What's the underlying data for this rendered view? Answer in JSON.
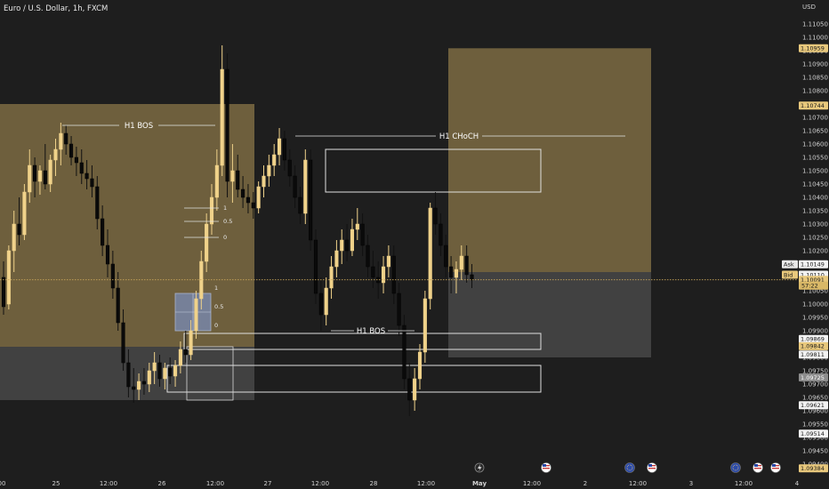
{
  "header": {
    "title": "Euro / U.S. Dollar, 1h, FXCM",
    "currency": "USD"
  },
  "chart_data": {
    "type": "candlestick",
    "symbol": "Euro / U.S. Dollar",
    "interval": "1h",
    "source": "FXCM",
    "ylim": [
      1.0937,
      1.1114
    ],
    "y_ticks": [
      "1.11100",
      "1.11050",
      "1.11000",
      "1.10950",
      "1.10900",
      "1.10850",
      "1.10800",
      "1.10750",
      "1.10700",
      "1.10650",
      "1.10600",
      "1.10550",
      "1.10500",
      "1.10450",
      "1.10400",
      "1.10350",
      "1.10300",
      "1.10250",
      "1.10200",
      "1.10150",
      "1.10100",
      "1.10050",
      "1.10000",
      "1.09950",
      "1.09900",
      "1.09850",
      "1.09800",
      "1.09750",
      "1.09700",
      "1.09650",
      "1.09600",
      "1.09550",
      "1.09500",
      "1.09450",
      "1.09400"
    ],
    "x_ticks": [
      {
        "label": "00",
        "x": 2
      },
      {
        "label": "25",
        "x": 63
      },
      {
        "label": "12:00",
        "x": 122
      },
      {
        "label": "26",
        "x": 182
      },
      {
        "label": "12:00",
        "x": 242
      },
      {
        "label": "27",
        "x": 301
      },
      {
        "label": "12:00",
        "x": 360
      },
      {
        "label": "28",
        "x": 420
      },
      {
        "label": "12:00",
        "x": 479
      },
      {
        "label": "May",
        "x": 539
      },
      {
        "label": "12:00",
        "x": 598
      },
      {
        "label": "2",
        "x": 658
      },
      {
        "label": "12:00",
        "x": 717
      },
      {
        "label": "3",
        "x": 777
      },
      {
        "label": "12:00",
        "x": 836
      },
      {
        "label": "4",
        "x": 896
      }
    ],
    "price_labels": [
      {
        "value": "1.10959",
        "kind": "gold"
      },
      {
        "value": "1.10744",
        "kind": "gold"
      },
      {
        "value": "1.10149",
        "kind": "white"
      },
      {
        "value": "1.10110",
        "kind": "white"
      },
      {
        "value": "1.10091",
        "kind": "gold"
      },
      {
        "value": "1.09869",
        "kind": "white"
      },
      {
        "value": "1.09842",
        "kind": "gold"
      },
      {
        "value": "1.09811",
        "kind": "white"
      },
      {
        "value": "1.09725",
        "kind": "gray"
      },
      {
        "value": "1.09621",
        "kind": "white"
      },
      {
        "value": "1.09514",
        "kind": "white"
      },
      {
        "value": "1.09384",
        "kind": "gold"
      }
    ],
    "ask_label": "Ask",
    "bid_label": "Bid",
    "countdown": "57:22",
    "annotations": [
      {
        "text": "H1 BOS",
        "kind": "label"
      },
      {
        "text": "H1 CHoCH",
        "kind": "label"
      },
      {
        "text": "H1 BOS",
        "kind": "label"
      }
    ],
    "fib_levels_upper": [
      "1",
      "0.5",
      "0"
    ],
    "fib_levels_lower": [
      "1",
      "0.5",
      "0"
    ],
    "candles": [
      [
        1.101,
        1.1016,
        1.0996,
        1.0999
      ],
      [
        1.1,
        1.1022,
        1.0998,
        1.102
      ],
      [
        1.102,
        1.1035,
        1.1012,
        1.103
      ],
      [
        1.103,
        1.104,
        1.1022,
        1.1026
      ],
      [
        1.1026,
        1.1045,
        1.1024,
        1.1042
      ],
      [
        1.1042,
        1.1058,
        1.1038,
        1.1052
      ],
      [
        1.1052,
        1.1055,
        1.104,
        1.1046
      ],
      [
        1.1046,
        1.1052,
        1.1041,
        1.105
      ],
      [
        1.105,
        1.106,
        1.1043,
        1.1045
      ],
      [
        1.1045,
        1.1056,
        1.1042,
        1.1054
      ],
      [
        1.1054,
        1.1062,
        1.1048,
        1.1058
      ],
      [
        1.1058,
        1.1068,
        1.1052,
        1.1064
      ],
      [
        1.1064,
        1.1067,
        1.1056,
        1.106
      ],
      [
        1.106,
        1.1063,
        1.1052,
        1.1055
      ],
      [
        1.1055,
        1.1059,
        1.1048,
        1.1053
      ],
      [
        1.1053,
        1.1058,
        1.1045,
        1.1049
      ],
      [
        1.1049,
        1.1054,
        1.1043,
        1.1047
      ],
      [
        1.1047,
        1.1052,
        1.104,
        1.1044
      ],
      [
        1.1044,
        1.1048,
        1.1028,
        1.1032
      ],
      [
        1.1032,
        1.1037,
        1.1018,
        1.1022
      ],
      [
        1.1022,
        1.1028,
        1.101,
        1.1015
      ],
      [
        1.1015,
        1.102,
        1.1002,
        1.1006
      ],
      [
        1.1006,
        1.1012,
        1.099,
        1.0993
      ],
      [
        1.0993,
        1.0998,
        1.0975,
        1.0978
      ],
      [
        1.0978,
        1.0983,
        1.0965,
        1.0969
      ],
      [
        1.0969,
        1.0976,
        1.0963,
        1.0968
      ],
      [
        1.0968,
        1.0974,
        1.0964,
        1.0971
      ],
      [
        1.0971,
        1.0976,
        1.0966,
        1.097
      ],
      [
        1.097,
        1.0978,
        1.0967,
        1.0975
      ],
      [
        1.0975,
        1.0982,
        1.097,
        1.0978
      ],
      [
        1.0978,
        1.0981,
        1.0969,
        1.0972
      ],
      [
        1.0972,
        1.0978,
        1.0968,
        1.0976
      ],
      [
        1.0976,
        1.098,
        1.097,
        1.0973
      ],
      [
        1.0973,
        1.0979,
        1.0969,
        1.0977
      ],
      [
        1.0977,
        1.0986,
        1.0974,
        1.0983
      ],
      [
        1.0983,
        1.099,
        1.0978,
        1.0981
      ],
      [
        1.0981,
        1.0994,
        1.0979,
        1.099
      ],
      [
        1.099,
        1.1005,
        1.0987,
        1.1002
      ],
      [
        1.1002,
        1.102,
        1.0998,
        1.1016
      ],
      [
        1.1016,
        1.1034,
        1.1012,
        1.103
      ],
      [
        1.103,
        1.1045,
        1.1026,
        1.104
      ],
      [
        1.104,
        1.1058,
        1.1035,
        1.1052
      ],
      [
        1.1052,
        1.1097,
        1.1048,
        1.1088
      ],
      [
        1.1088,
        1.1094,
        1.104,
        1.1046
      ],
      [
        1.1046,
        1.106,
        1.1038,
        1.105
      ],
      [
        1.105,
        1.1056,
        1.104,
        1.1043
      ],
      [
        1.1043,
        1.1048,
        1.1036,
        1.104
      ],
      [
        1.104,
        1.1045,
        1.1034,
        1.1038
      ],
      [
        1.1038,
        1.1042,
        1.1032,
        1.1036
      ],
      [
        1.1036,
        1.1046,
        1.1034,
        1.1044
      ],
      [
        1.1044,
        1.1052,
        1.104,
        1.1048
      ],
      [
        1.1048,
        1.1056,
        1.1044,
        1.1052
      ],
      [
        1.1052,
        1.106,
        1.1048,
        1.1056
      ],
      [
        1.1056,
        1.1066,
        1.1052,
        1.1062
      ],
      [
        1.1062,
        1.1065,
        1.105,
        1.1054
      ],
      [
        1.1054,
        1.1058,
        1.1044,
        1.1048
      ],
      [
        1.1048,
        1.1052,
        1.1036,
        1.104
      ],
      [
        1.104,
        1.1044,
        1.103,
        1.1034
      ],
      [
        1.1034,
        1.1058,
        1.103,
        1.1054
      ],
      [
        1.1054,
        1.1058,
        1.102,
        1.1024
      ],
      [
        1.1024,
        1.1028,
        1.1,
        1.1004
      ],
      [
        1.1004,
        1.101,
        1.099,
        1.0996
      ],
      [
        1.0996,
        1.101,
        1.0992,
        1.1006
      ],
      [
        1.1006,
        1.1018,
        1.1002,
        1.1014
      ],
      [
        1.1014,
        1.1024,
        1.101,
        1.102
      ],
      [
        1.102,
        1.1028,
        1.1015,
        1.1024
      ],
      [
        1.1024,
        1.103,
        1.1016,
        1.102
      ],
      [
        1.102,
        1.1032,
        1.1018,
        1.1028
      ],
      [
        1.1028,
        1.1036,
        1.1024,
        1.103
      ],
      [
        1.103,
        1.1034,
        1.1018,
        1.1022
      ],
      [
        1.1022,
        1.1026,
        1.101,
        1.1014
      ],
      [
        1.1014,
        1.102,
        1.1006,
        1.101
      ],
      [
        1.101,
        1.1016,
        1.1002,
        1.1008
      ],
      [
        1.1008,
        1.1018,
        1.1004,
        1.1014
      ],
      [
        1.1014,
        1.1022,
        1.101,
        1.1018
      ],
      [
        1.1018,
        1.1022,
        1.1,
        1.1004
      ],
      [
        1.1004,
        1.1008,
        1.0988,
        1.0992
      ],
      [
        1.0992,
        1.0996,
        1.0968,
        1.0972
      ],
      [
        1.0972,
        1.0978,
        1.0958,
        1.0964
      ],
      [
        1.0964,
        1.0976,
        1.096,
        1.0972
      ],
      [
        1.0972,
        1.0985,
        1.0968,
        1.0982
      ],
      [
        1.0982,
        1.1005,
        1.0978,
        1.1002
      ],
      [
        1.1002,
        1.1038,
        1.0998,
        1.1036
      ],
      [
        1.1036,
        1.1042,
        1.1026,
        1.103
      ],
      [
        1.103,
        1.1034,
        1.1018,
        1.1022
      ],
      [
        1.1022,
        1.1026,
        1.101,
        1.1014
      ],
      [
        1.1014,
        1.1018,
        1.1004,
        1.101
      ],
      [
        1.101,
        1.1016,
        1.1004,
        1.1013
      ],
      [
        1.1013,
        1.1022,
        1.1009,
        1.1018
      ],
      [
        1.1018,
        1.1022,
        1.1008,
        1.1011
      ],
      [
        1.1011,
        1.1015,
        1.1006,
        1.1009
      ]
    ],
    "boxes": [
      {
        "name": "supply-zone-left",
        "x1": 0,
        "x2": 286,
        "y1": 1.1075,
        "y2": 1.0984,
        "style": "gold-fill"
      },
      {
        "name": "demand-zone-left",
        "x1": 0,
        "x2": 286,
        "y1": 1.0984,
        "y2": 1.0964,
        "style": "gray-fill"
      },
      {
        "name": "target-zone-upper",
        "x1": 504,
        "x2": 732,
        "y1": 1.10959,
        "y2": 1.1012,
        "style": "gold-fill"
      },
      {
        "name": "target-zone-lower",
        "x1": 504,
        "x2": 732,
        "y1": 1.1012,
        "y2": 1.098,
        "style": "gray-fill"
      },
      {
        "name": "order-block-upper",
        "x1": 366,
        "x2": 608,
        "y1": 1.1058,
        "y2": 1.1042,
        "style": "outline"
      },
      {
        "name": "order-block-mid",
        "x1": 207,
        "x2": 608,
        "y1": 1.0989,
        "y2": 1.0983,
        "style": "outline"
      },
      {
        "name": "order-block-lower",
        "x1": 188,
        "x2": 608,
        "y1": 1.0977,
        "y2": 1.0967,
        "style": "outline"
      },
      {
        "name": "fib-box-lower",
        "x1": 197,
        "x2": 237,
        "y1": 1.1004,
        "y2": 1.099,
        "style": "blue-fill"
      },
      {
        "name": "outline-left-small",
        "x1": 210,
        "x2": 262,
        "y1": 1.0984,
        "y2": 1.0964,
        "style": "outline-thin"
      }
    ]
  },
  "toolbar": {
    "lightning_icon": "lightning-icon",
    "event_icons": [
      "us-flag-icon",
      "eu-flag-icon",
      "us-flag-icon",
      "eu-flag-icon",
      "us-flag-icon",
      "us-flag-icon"
    ]
  }
}
